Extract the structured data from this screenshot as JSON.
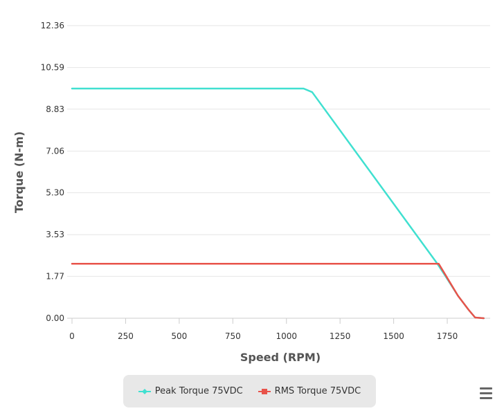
{
  "chart_data": {
    "type": "line",
    "title": "",
    "xlabel": "Speed (RPM)",
    "ylabel": "Torque (N-m)",
    "xlim": [
      0,
      1950
    ],
    "ylim": [
      0,
      12.36
    ],
    "x_ticks": [
      "0",
      "250",
      "500",
      "750",
      "1000",
      "1250",
      "1500",
      "1750"
    ],
    "y_ticks": [
      "0.00",
      "1.77",
      "3.53",
      "5.30",
      "7.06",
      "8.83",
      "10.59",
      "12.36"
    ],
    "grid": true,
    "legend_position": "bottom-center",
    "series": [
      {
        "name": "Peak Torque 75VDC",
        "color": "#40e0d0",
        "x": [
          0,
          1080,
          1120,
          1700,
          1740,
          1800,
          1850,
          1880,
          1920
        ],
        "y": [
          9.7,
          9.7,
          9.55,
          2.35,
          1.8,
          0.95,
          0.35,
          0.03,
          0.0
        ]
      },
      {
        "name": "RMS Torque 75VDC",
        "color": "#e8534a",
        "x": [
          0,
          1710,
          1740,
          1800,
          1850,
          1880,
          1920
        ],
        "y": [
          2.3,
          2.3,
          1.85,
          0.95,
          0.35,
          0.03,
          0.0
        ]
      }
    ]
  }
}
